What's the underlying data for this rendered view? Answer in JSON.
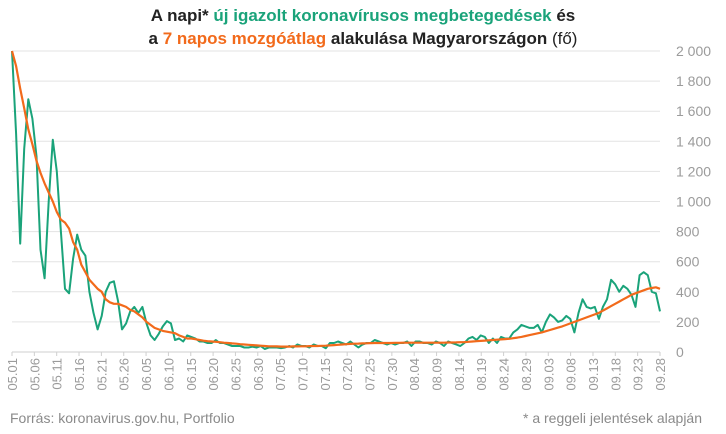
{
  "title": {
    "line1_part1": "A napi* ",
    "line1_highlight": "új igazolt koronavírusos megbetegedések",
    "line1_part2": " és",
    "line2_part1": "a ",
    "line2_highlight": "7 napos mozgóátlag",
    "line2_part2": " alakulása Magyarországon ",
    "line2_unit": "(fő)"
  },
  "source": "Forrás: koronavirus.gov.hu, Portfolio",
  "footnote": "* a reggeli jelentések alapján",
  "colors": {
    "daily": "#1aa37a",
    "avg": "#f26a1b",
    "grid": "#e3e3e3",
    "axis_text": "#9b9b9b"
  },
  "chart_data": {
    "type": "line",
    "x_tick_labels": [
      "05.01",
      "05.06",
      "05.11",
      "05.16",
      "05.21",
      "05.26",
      "06.05",
      "06.10",
      "06.15",
      "06.20",
      "06.25",
      "06.30",
      "07.05",
      "07.10",
      "07.15",
      "07.20",
      "07.25",
      "07.30",
      "08.04",
      "08.09",
      "08.14",
      "08.19",
      "08.24",
      "08.29",
      "09.03",
      "09.08",
      "09.13",
      "09.18",
      "09.23",
      "09.28"
    ],
    "y_tick_labels": [
      "0",
      "200",
      "400",
      "600",
      "800",
      "1 000",
      "1 200",
      "1 400",
      "1 600",
      "1 800",
      "2 000"
    ],
    "ylim": [
      0,
      2000
    ],
    "y_axis_position": "right",
    "grid": true,
    "series": [
      {
        "name": "új igazolt koronavírusos megbetegedések",
        "values": [
          2000,
          1450,
          720,
          1350,
          1680,
          1550,
          1300,
          680,
          490,
          1000,
          1410,
          1200,
          800,
          420,
          390,
          620,
          780,
          680,
          640,
          400,
          260,
          150,
          240,
          400,
          460,
          470,
          340,
          150,
          190,
          270,
          300,
          260,
          300,
          190,
          110,
          80,
          120,
          170,
          205,
          190,
          80,
          90,
          70,
          110,
          100,
          90,
          70,
          70,
          60,
          60,
          80,
          60,
          60,
          50,
          40,
          40,
          40,
          30,
          30,
          35,
          30,
          40,
          20,
          30,
          30,
          30,
          25,
          30,
          40,
          30,
          50,
          40,
          40,
          30,
          50,
          40,
          40,
          25,
          60,
          60,
          70,
          60,
          50,
          70,
          50,
          30,
          50,
          60,
          60,
          80,
          70,
          60,
          50,
          60,
          50,
          60,
          60,
          70,
          40,
          70,
          70,
          60,
          60,
          50,
          70,
          60,
          40,
          70,
          60,
          50,
          40,
          60,
          90,
          100,
          80,
          110,
          100,
          60,
          90,
          60,
          100,
          90,
          90,
          130,
          150,
          180,
          170,
          160,
          160,
          180,
          130,
          200,
          250,
          230,
          200,
          210,
          240,
          220,
          130,
          260,
          350,
          300,
          290,
          300,
          220,
          300,
          350,
          480,
          450,
          400,
          440,
          420,
          380,
          300,
          510,
          530,
          510,
          400,
          390,
          270
        ]
      },
      {
        "name": "7 napos mozgóátlag",
        "values": [
          2000,
          1900,
          1750,
          1620,
          1480,
          1380,
          1270,
          1190,
          1120,
          1060,
          1000,
          930,
          880,
          860,
          820,
          730,
          680,
          580,
          530,
          480,
          450,
          420,
          400,
          350,
          330,
          320,
          320,
          310,
          300,
          280,
          270,
          250,
          230,
          200,
          180,
          160,
          150,
          140,
          135,
          130,
          125,
          110,
          100,
          90,
          90,
          85,
          80,
          75,
          72,
          70,
          68,
          65,
          62,
          60,
          57,
          55,
          52,
          50,
          48,
          46,
          44,
          42,
          40,
          38,
          38,
          37,
          36,
          36,
          36,
          37,
          37,
          38,
          38,
          39,
          40,
          40,
          41,
          42,
          44,
          46,
          48,
          50,
          52,
          54,
          55,
          56,
          57,
          58,
          59,
          60,
          60,
          60,
          60,
          60,
          61,
          61,
          62,
          62,
          62,
          62,
          62,
          62,
          62,
          62,
          62,
          62,
          62,
          63,
          63,
          64,
          65,
          66,
          68,
          70,
          72,
          74,
          76,
          78,
          80,
          82,
          84,
          86,
          88,
          92,
          96,
          100,
          106,
          112,
          118,
          124,
          130,
          138,
          146,
          154,
          162,
          170,
          180,
          190,
          200,
          210,
          220,
          230,
          240,
          250,
          260,
          275,
          290,
          305,
          320,
          335,
          350,
          365,
          380,
          390,
          400,
          410,
          420,
          425,
          430,
          420
        ]
      }
    ]
  }
}
